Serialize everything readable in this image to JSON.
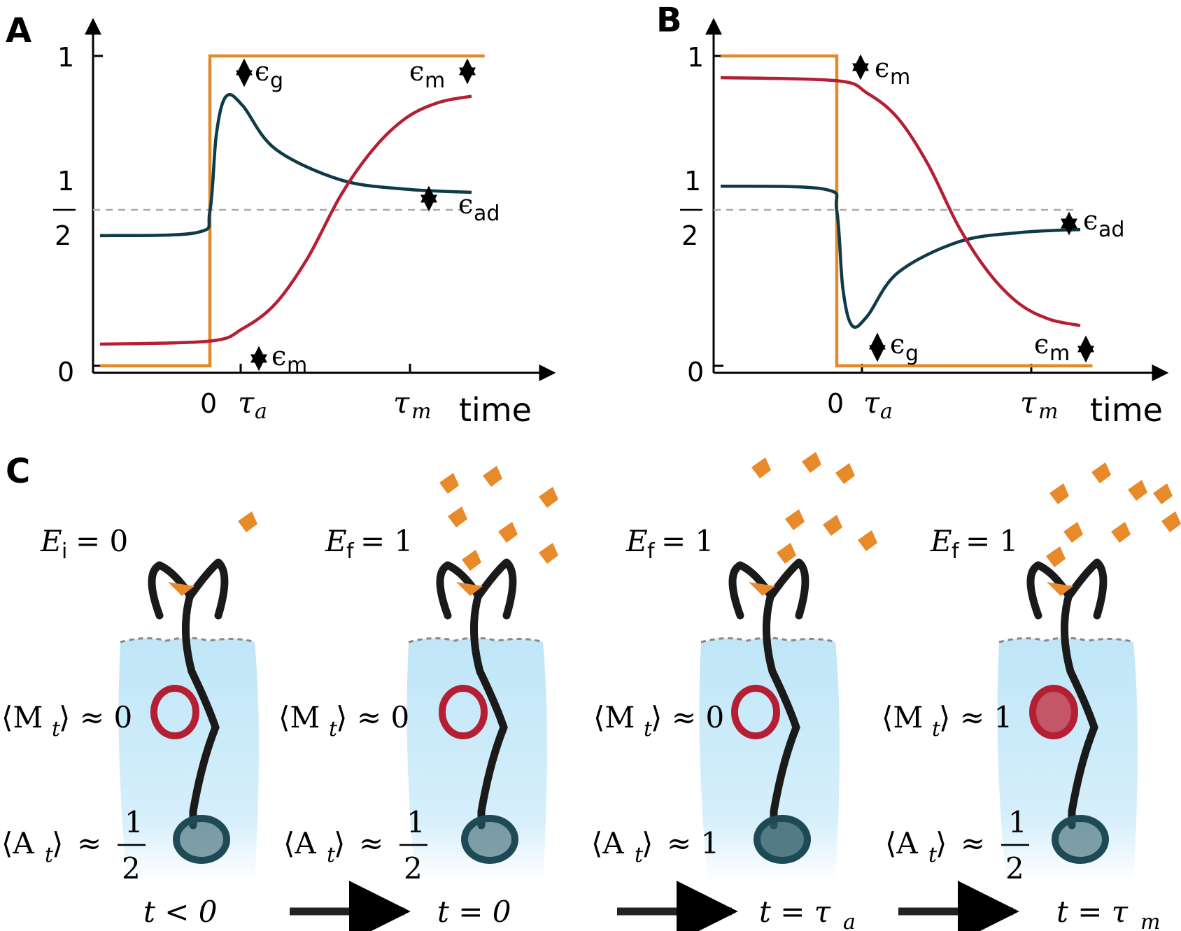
{
  "panels": {
    "A": {
      "letter": "A"
    },
    "B": {
      "letter": "B"
    },
    "C": {
      "letter": "C"
    }
  },
  "axes": {
    "y_tick_1": "1",
    "y_tick_half_num": "1",
    "y_tick_half_den": "2",
    "y_tick_0": "0",
    "x_tick_0": "0",
    "x_tick_tau_a": "τ",
    "x_tick_tau_a_sub": "a",
    "x_tick_tau_m": "τ",
    "x_tick_tau_m_sub": "m",
    "x_label": "time"
  },
  "annotations": {
    "eps": "ϵ",
    "g": "g",
    "m": "m",
    "ad": "ad"
  },
  "colors": {
    "stimulus": "#e08a2b",
    "activity": "#0f3a48",
    "methylation": "#b51f33",
    "dashed": "#aaaaaa",
    "cell": "#bfe6f8",
    "ligand": "#e8892a",
    "receptor": "#1a1a1a"
  },
  "chart_data": [
    {
      "type": "line",
      "panel": "A",
      "xlabel": "time",
      "x_ticks": [
        "0",
        "τa",
        "τm"
      ],
      "y_ticks": [
        "0",
        "1/2",
        "1"
      ],
      "ylim": [
        0,
        1
      ],
      "reference_line": {
        "y": 0.5,
        "style": "dashed"
      },
      "series": [
        {
          "x": [
            -1,
            0,
            0,
            4.2
          ],
          "values": [
            0,
            0,
            1,
            1
          ]
        },
        {
          "x": [
            -1,
            -0.2,
            0,
            0.1,
            0.25,
            0.5,
            1,
            2,
            3,
            4
          ],
          "values": [
            0.42,
            0.43,
            0.5,
            0.75,
            0.87,
            0.84,
            0.7,
            0.6,
            0.57,
            0.56
          ]
        },
        {
          "x": [
            -1,
            0,
            0.5,
            1,
            1.5,
            2,
            2.5,
            3,
            3.5,
            4
          ],
          "values": [
            0.07,
            0.08,
            0.12,
            0.2,
            0.35,
            0.55,
            0.7,
            0.8,
            0.85,
            0.87
          ]
        }
      ],
      "annotations": [
        "ϵg",
        "ϵm",
        "ϵad",
        "ϵm"
      ]
    },
    {
      "type": "line",
      "panel": "B",
      "xlabel": "time",
      "x_ticks": [
        "0",
        "τa",
        "τm"
      ],
      "y_ticks": [
        "0",
        "1/2",
        "1"
      ],
      "ylim": [
        0,
        1
      ],
      "reference_line": {
        "y": 0.5,
        "style": "dashed"
      },
      "series": [
        {
          "x": [
            -1,
            0,
            0,
            4.2
          ],
          "values": [
            1,
            1,
            0,
            0
          ]
        },
        {
          "x": [
            -1,
            -0.2,
            0,
            0.1,
            0.25,
            0.5,
            1,
            2,
            3,
            4
          ],
          "values": [
            0.58,
            0.57,
            0.5,
            0.25,
            0.13,
            0.16,
            0.3,
            0.4,
            0.43,
            0.44
          ]
        },
        {
          "x": [
            -1,
            0,
            0.5,
            1,
            1.5,
            2,
            2.5,
            3,
            3.5,
            4
          ],
          "values": [
            0.93,
            0.92,
            0.88,
            0.8,
            0.65,
            0.45,
            0.3,
            0.2,
            0.15,
            0.13
          ]
        }
      ],
      "annotations": [
        "ϵm",
        "ϵad",
        "ϵg",
        "ϵm"
      ]
    }
  ],
  "panelC": {
    "stages": [
      {
        "E_sym": "E",
        "E_sub": "i",
        "E_val": "= 0",
        "M_val": "≈ 0",
        "A_val": "≈",
        "A_num": "1",
        "A_den": "2",
        "A_frac": true,
        "t_label": "t < 0",
        "methylated": false,
        "active_fill": 0.5
      },
      {
        "E_sym": "E",
        "E_sub": "f",
        "E_val": "= 1",
        "M_val": "≈ 0",
        "A_val": "≈",
        "A_num": "1",
        "A_den": "2",
        "A_frac": true,
        "t_label": "t = 0",
        "methylated": false,
        "active_fill": 0.5
      },
      {
        "E_sym": "E",
        "E_sub": "f",
        "E_val": "= 1",
        "M_val": "≈ 0",
        "A_val": "≈ 1",
        "A_num": "",
        "A_den": "",
        "A_frac": false,
        "t_label": "t = τ",
        "t_sub": "a",
        "methylated": false,
        "active_fill": 1.0
      },
      {
        "E_sym": "E",
        "E_sub": "f",
        "E_val": "= 1",
        "M_val": "≈ 1",
        "A_val": "≈",
        "A_num": "1",
        "A_den": "2",
        "A_frac": true,
        "t_label": "t = τ",
        "t_sub": "m",
        "methylated": true,
        "active_fill": 0.5
      }
    ],
    "M_label": "⟨M",
    "M_sub": "t",
    "M_close": "⟩",
    "A_label": "⟨A",
    "A_sub": "t",
    "A_close": "⟩"
  }
}
